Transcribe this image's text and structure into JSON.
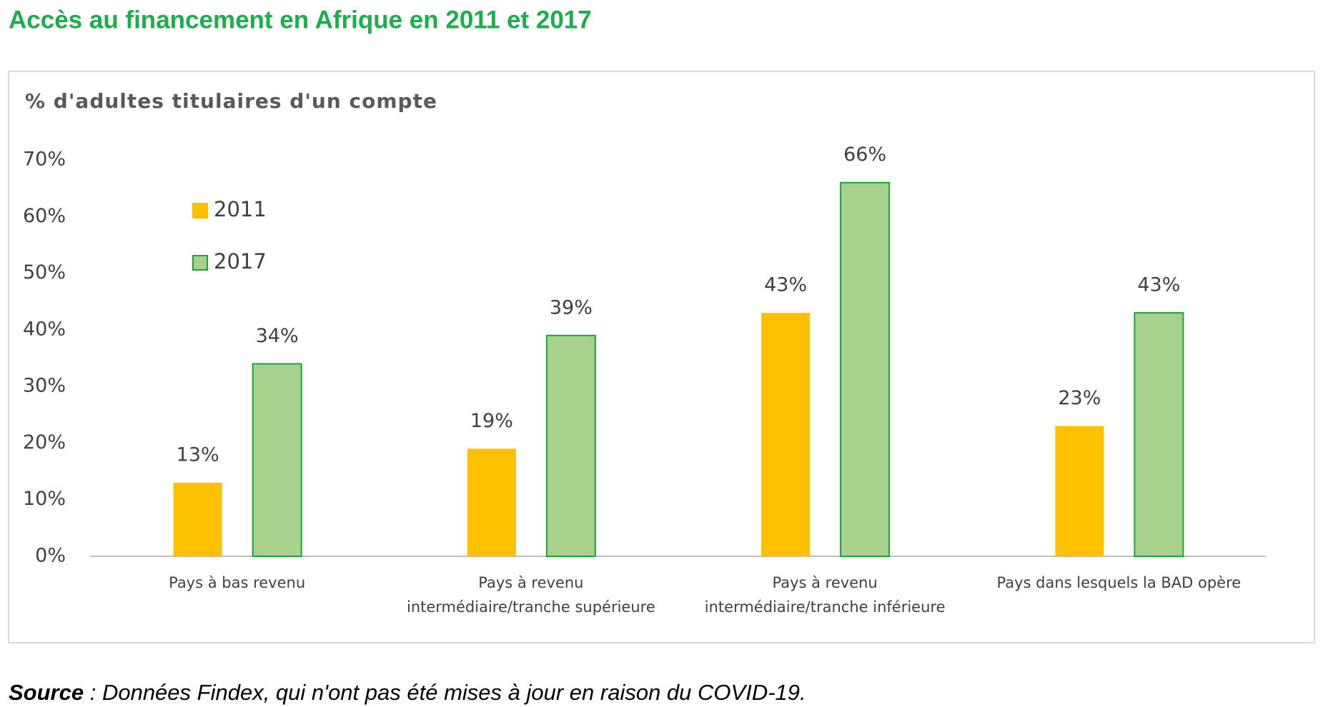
{
  "chart_data": {
    "type": "bar",
    "title": "Accès au financement en Afrique en 2011 et 2017",
    "subtitle": "% d'adultes titulaires d'un compte",
    "categories": [
      "Pays à bas revenu",
      "Pays à revenu\nintermédiaire/tranche supérieure",
      "Pays à revenu\nintermédiaire/tranche inférieure",
      "Pays dans lesquels la BAD opère"
    ],
    "series": [
      {
        "name": "2011",
        "color": "#ffc000",
        "values": [
          13,
          19,
          43,
          23
        ],
        "value_labels": [
          "13%",
          "19%",
          "43%",
          "23%"
        ]
      },
      {
        "name": "2017",
        "color": "#a9d18e",
        "edge_color": "#1aa33a",
        "values": [
          34,
          39,
          66,
          43
        ],
        "value_labels": [
          "34%",
          "39%",
          "66%",
          "43%"
        ]
      }
    ],
    "ylim": [
      0,
      70
    ],
    "yticks": [
      {
        "value": 0,
        "label": "0%"
      },
      {
        "value": 10,
        "label": "10%"
      },
      {
        "value": 20,
        "label": "20%"
      },
      {
        "value": 30,
        "label": "30%"
      },
      {
        "value": 40,
        "label": "40%"
      },
      {
        "value": 50,
        "label": "50%"
      },
      {
        "value": 60,
        "label": "60%"
      },
      {
        "value": 70,
        "label": "70%"
      }
    ],
    "grid": false,
    "legend": "upper left",
    "source_label": "Source",
    "source_text": " : Données Findex, qui n'ont pas été mises à jour en raison du COVID-19."
  }
}
